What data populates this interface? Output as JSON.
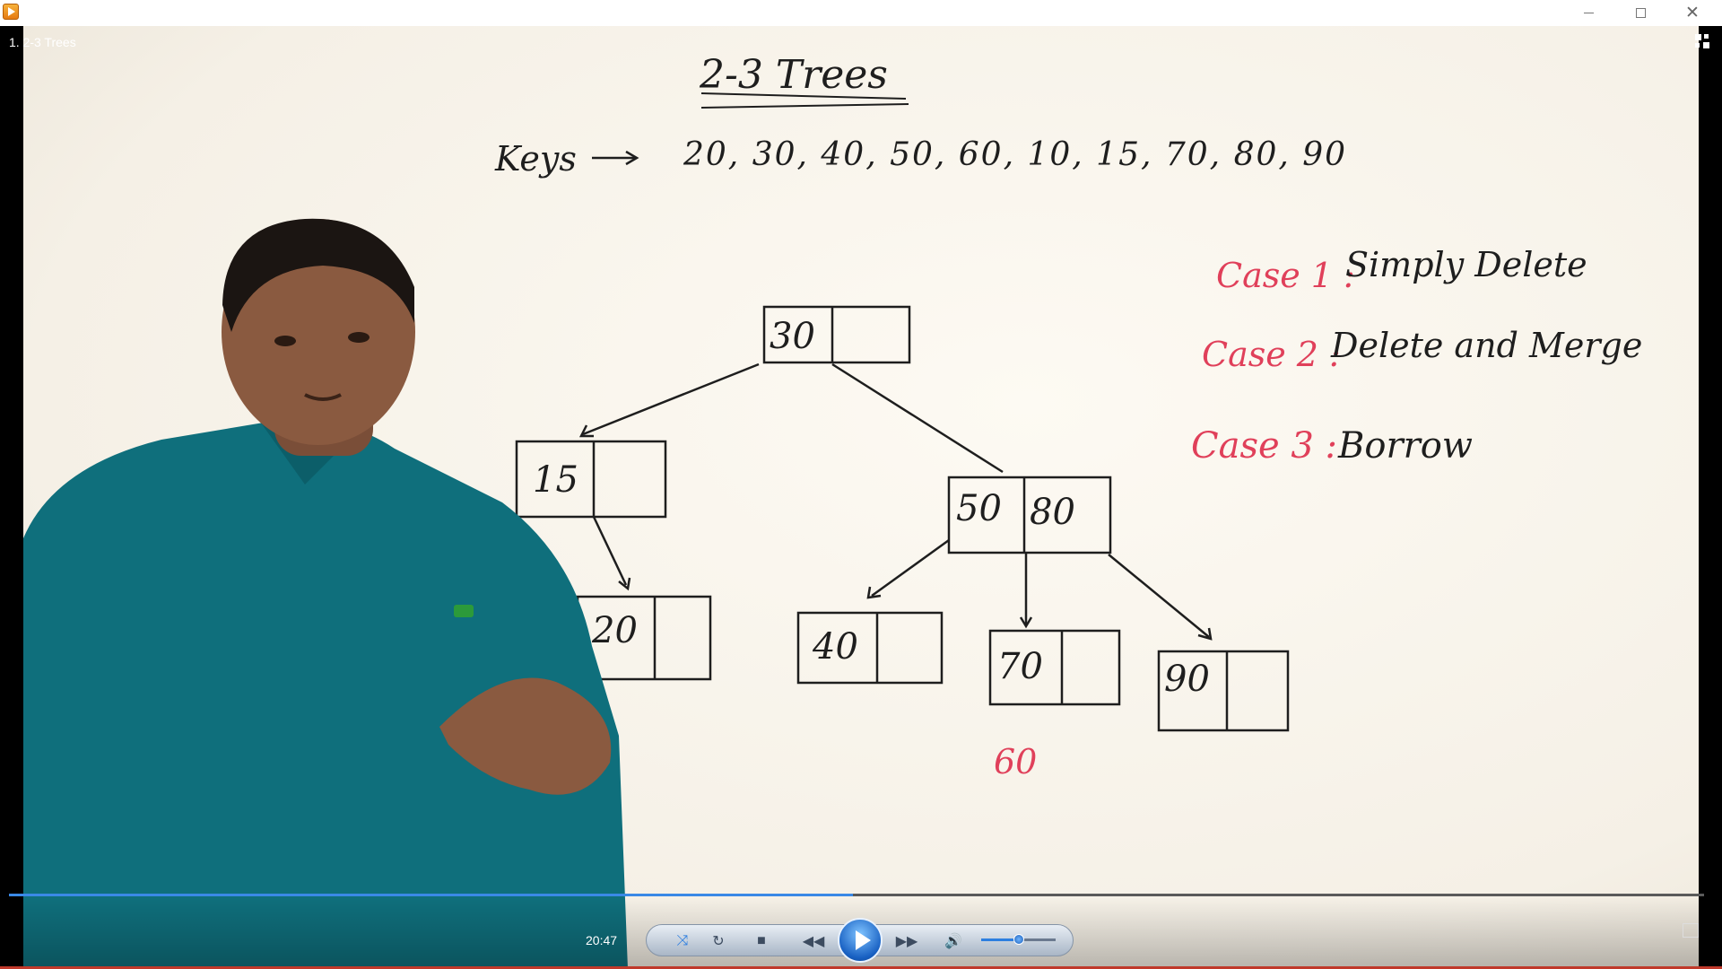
{
  "window": {
    "title": "",
    "app_icon": "media-player-icon"
  },
  "video": {
    "title": "1. 2-3 Trees",
    "board": {
      "heading": "2-3 Trees",
      "keys_label": "Keys",
      "keys_values": "20, 30, 40, 50, 60, 10, 15, 70, 80, 90",
      "cases": [
        {
          "label": "Case 1 :",
          "text": "Simply Delete"
        },
        {
          "label": "Case 2 :",
          "text": "Delete and Merge"
        },
        {
          "label": "Case 3 :",
          "text": "Borrow"
        }
      ],
      "tree": {
        "root": "30",
        "left": "15",
        "right_a": "50",
        "right_b": "80",
        "leaves": [
          "20",
          "40",
          "70",
          "90"
        ],
        "deleted_note": "60"
      }
    }
  },
  "player": {
    "current_time": "20:47",
    "progress": 0.498,
    "volume": 0.5,
    "colors": {
      "progress": "#3a89e6",
      "pen_red": "#e0405a",
      "shirt": "#0f6f7c"
    }
  }
}
